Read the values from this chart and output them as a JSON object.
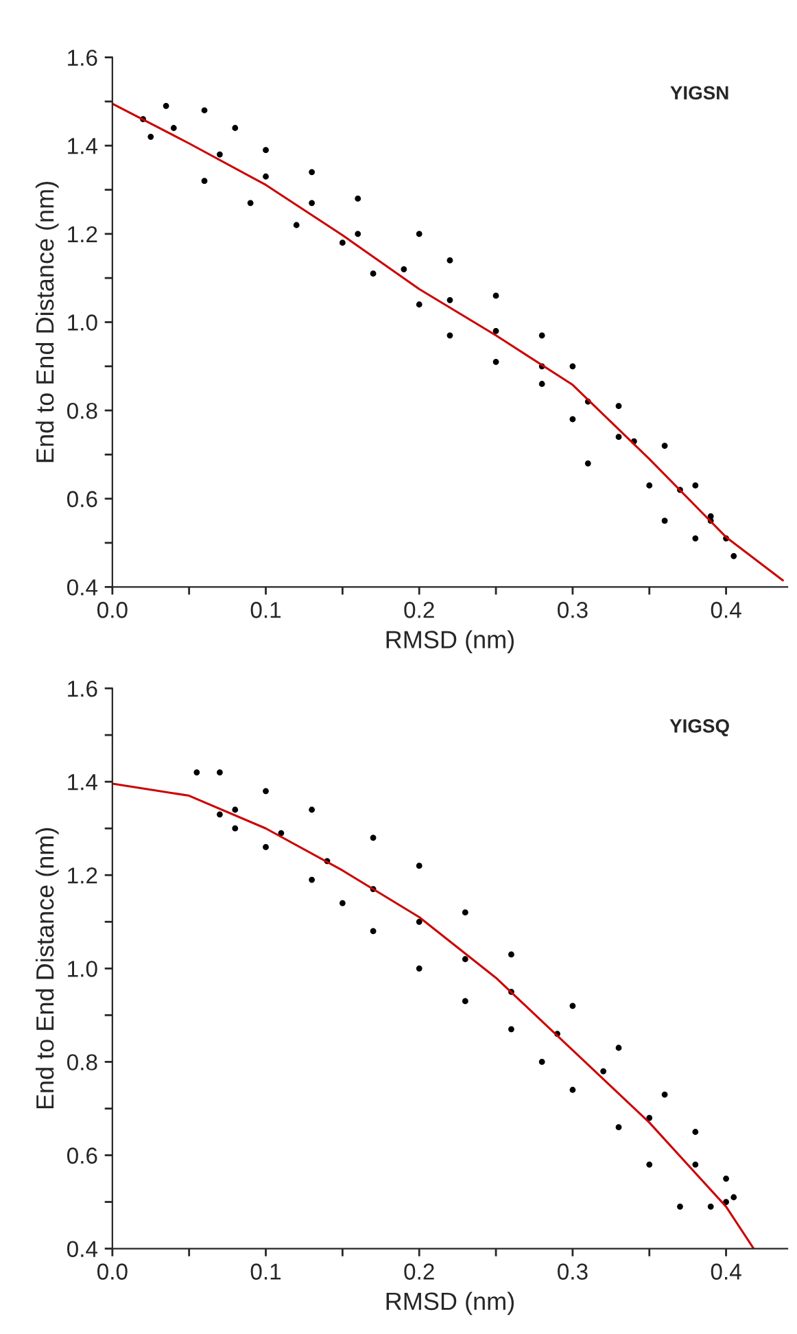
{
  "chart_data": [
    {
      "type": "scatter",
      "xlabel": "RMSD (nm)",
      "ylabel": "End to End Distance (nm)",
      "annotations": [
        "YIGSN"
      ],
      "xlim": [
        0.0,
        0.44
      ],
      "ylim": [
        0.4,
        1.6
      ],
      "xticks": [
        {
          "value": 0,
          "label": "0.0"
        },
        {
          "value": 0.05,
          "label": null
        },
        0.1,
        {
          "value": 0.15,
          "label": null
        },
        0.2,
        {
          "value": 0.25,
          "label": null
        },
        0.3,
        {
          "value": 0.35,
          "label": null
        },
        0.4
      ],
      "yticks": [
        0.4,
        {
          "value": 0.5,
          "label": null
        },
        0.6,
        {
          "value": 0.7,
          "label": null
        },
        0.8,
        {
          "value": 0.9,
          "label": null
        },
        {
          "value": 1,
          "label": "1.0"
        },
        {
          "value": 1.1,
          "label": null
        },
        1.2,
        {
          "value": 1.3,
          "label": null
        },
        1.4,
        {
          "value": 1.5,
          "label": null
        },
        1.6
      ],
      "series": [
        {
          "color": "#000000",
          "x": [
            0.02,
            0.035,
            0.06,
            0.08,
            0.1,
            0.13,
            0.16,
            0.2,
            0.22,
            0.25,
            0.28,
            0.3,
            0.33,
            0.36,
            0.38,
            0.39,
            0.025,
            0.06,
            0.09,
            0.12,
            0.15,
            0.17,
            0.2,
            0.22,
            0.25,
            0.28,
            0.3,
            0.31,
            0.33,
            0.35,
            0.36,
            0.38,
            0.4,
            0.405,
            0.04,
            0.07,
            0.1,
            0.13,
            0.16,
            0.19,
            0.22,
            0.25,
            0.28,
            0.31,
            0.34,
            0.37,
            0.39
          ],
          "values": [
            1.46,
            1.49,
            1.48,
            1.44,
            1.39,
            1.34,
            1.28,
            1.2,
            1.14,
            1.06,
            0.97,
            0.9,
            0.81,
            0.72,
            0.63,
            0.56,
            1.42,
            1.32,
            1.27,
            1.22,
            1.18,
            1.11,
            1.04,
            0.97,
            0.91,
            0.86,
            0.78,
            0.68,
            0.74,
            0.63,
            0.55,
            0.51,
            0.51,
            0.47,
            1.44,
            1.38,
            1.33,
            1.27,
            1.2,
            1.12,
            1.05,
            0.98,
            0.9,
            0.82,
            0.73,
            0.62,
            0.55
          ]
        },
        {
          "type": "line",
          "color": "#cc0000",
          "marker": "none",
          "x": [
            0.0,
            0.05,
            0.1,
            0.15,
            0.2,
            0.25,
            0.3,
            0.35,
            0.4,
            0.437
          ],
          "values": [
            1.495,
            1.405,
            1.311,
            1.197,
            1.075,
            0.97,
            0.858,
            0.69,
            0.513,
            0.415
          ]
        }
      ]
    },
    {
      "type": "scatter",
      "xlabel": "RMSD (nm)",
      "ylabel": "End to End Distance (nm)",
      "annotations": [
        "YIGSQ"
      ],
      "xlim": [
        0.0,
        0.44
      ],
      "ylim": [
        0.4,
        1.6
      ],
      "xticks": [
        {
          "value": 0,
          "label": "0.0"
        },
        {
          "value": 0.05,
          "label": null
        },
        0.1,
        {
          "value": 0.15,
          "label": null
        },
        0.2,
        {
          "value": 0.25,
          "label": null
        },
        0.3,
        {
          "value": 0.35,
          "label": null
        },
        0.4
      ],
      "yticks": [
        0.4,
        {
          "value": 0.5,
          "label": null
        },
        0.6,
        {
          "value": 0.7,
          "label": null
        },
        0.8,
        {
          "value": 0.9,
          "label": null
        },
        {
          "value": 1,
          "label": "1.0"
        },
        {
          "value": 1.1,
          "label": null
        },
        1.2,
        {
          "value": 1.3,
          "label": null
        },
        1.4,
        {
          "value": 1.5,
          "label": null
        },
        1.6
      ],
      "series": [
        {
          "color": "#000000",
          "x": [
            0.055,
            0.07,
            0.1,
            0.13,
            0.17,
            0.2,
            0.23,
            0.26,
            0.3,
            0.33,
            0.36,
            0.38,
            0.4,
            0.405,
            0.07,
            0.08,
            0.1,
            0.13,
            0.15,
            0.17,
            0.2,
            0.23,
            0.26,
            0.28,
            0.3,
            0.33,
            0.35,
            0.37,
            0.39,
            0.4,
            0.08,
            0.11,
            0.14,
            0.17,
            0.2,
            0.23,
            0.26,
            0.29,
            0.32,
            0.35,
            0.38
          ],
          "values": [
            1.42,
            1.42,
            1.38,
            1.34,
            1.28,
            1.22,
            1.12,
            1.03,
            0.92,
            0.83,
            0.73,
            0.65,
            0.55,
            0.51,
            1.33,
            1.3,
            1.26,
            1.19,
            1.14,
            1.08,
            1.0,
            0.93,
            0.87,
            0.8,
            0.74,
            0.66,
            0.58,
            0.49,
            0.49,
            0.5,
            1.34,
            1.29,
            1.23,
            1.17,
            1.1,
            1.02,
            0.95,
            0.86,
            0.78,
            0.68,
            0.58
          ]
        },
        {
          "type": "line",
          "color": "#cc0000",
          "marker": "none",
          "x": [
            0.0,
            0.05,
            0.1,
            0.15,
            0.2,
            0.25,
            0.3,
            0.35,
            0.4,
            0.418
          ],
          "values": [
            1.396,
            1.37,
            1.3,
            1.21,
            1.11,
            0.98,
            0.825,
            0.67,
            0.49,
            0.4
          ]
        }
      ]
    }
  ]
}
